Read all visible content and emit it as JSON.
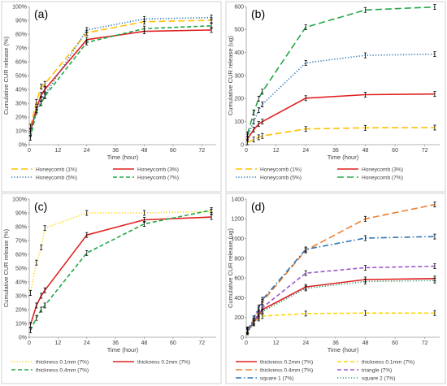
{
  "chart_data": [
    {
      "type": "line",
      "panel_label": "(a)",
      "xlabel": "Time (hour)",
      "ylabel": "Cumulative CUR release (%)",
      "xlim": [
        0,
        78
      ],
      "ylim": [
        0,
        100
      ],
      "xticks": [
        0,
        12,
        24,
        36,
        48,
        60,
        72
      ],
      "yticks": [
        0,
        10,
        20,
        30,
        40,
        50,
        60,
        70,
        80,
        90,
        100
      ],
      "ytick_suffix": "%",
      "legend_placement": "bottom",
      "legend_columns": 2,
      "series": [
        {
          "name": "Honeycomb (1%)",
          "color": "#FFC000",
          "dash": "long-dash",
          "x": [
            0.5,
            3,
            5,
            6.5,
            24,
            48,
            76
          ],
          "y": [
            13,
            31,
            42,
            44,
            81,
            89,
            90
          ]
        },
        {
          "name": "Honeycomb (3%)",
          "color": "#E02020",
          "dash": "solid",
          "x": [
            0.5,
            3,
            5,
            6.5,
            24,
            48,
            76
          ],
          "y": [
            10,
            26,
            36,
            40,
            76,
            82,
            83
          ]
        },
        {
          "name": "Honeycomb (5%)",
          "color": "#2E75B6",
          "dash": "dotted",
          "x": [
            0.5,
            3,
            5,
            6.5,
            24,
            48,
            76
          ],
          "y": [
            8,
            25,
            33,
            36,
            83,
            91,
            92
          ]
        },
        {
          "name": "Honeycomb (7%)",
          "color": "#22A845",
          "dash": "dashed",
          "x": [
            0.5,
            3,
            5,
            6.5,
            24,
            48,
            76
          ],
          "y": [
            5,
            24,
            30,
            35,
            74,
            84,
            86
          ]
        }
      ]
    },
    {
      "type": "line",
      "panel_label": "(b)",
      "xlabel": "Time (hour)",
      "ylabel": "Cumulative CUR release (ug)",
      "xlim": [
        0,
        78
      ],
      "ylim": [
        0,
        600
      ],
      "xticks": [
        0,
        12,
        24,
        36,
        48,
        60,
        72
      ],
      "yticks": [
        0,
        100,
        200,
        300,
        400,
        500,
        600
      ],
      "ytick_suffix": "",
      "legend_placement": "bottom",
      "legend_columns": 2,
      "series": [
        {
          "name": "Honeycomb (1%)",
          "color": "#FFC000",
          "dash": "long-dash",
          "x": [
            0.5,
            3,
            5,
            6.5,
            24,
            48,
            76
          ],
          "y": [
            10,
            22,
            32,
            38,
            68,
            73,
            74
          ]
        },
        {
          "name": "Honeycomb (3%)",
          "color": "#E02020",
          "dash": "solid",
          "x": [
            0.5,
            3,
            5,
            6.5,
            24,
            48,
            76
          ],
          "y": [
            25,
            65,
            90,
            100,
            202,
            217,
            220
          ]
        },
        {
          "name": "Honeycomb (5%)",
          "color": "#2E75B6",
          "dash": "dotted",
          "x": [
            0.5,
            3,
            5,
            6.5,
            24,
            48,
            76
          ],
          "y": [
            35,
            100,
            150,
            175,
            355,
            388,
            393
          ]
        },
        {
          "name": "Honeycomb (7%)",
          "color": "#22A845",
          "dash": "long-dash",
          "x": [
            0.5,
            3,
            5,
            6.5,
            24,
            48,
            76
          ],
          "y": [
            45,
            140,
            200,
            230,
            510,
            585,
            598
          ]
        }
      ]
    },
    {
      "type": "line",
      "panel_label": "(c)",
      "xlabel": "Time (hour)",
      "ylabel": "Cumulative CUR release (%)",
      "xlim": [
        0,
        78
      ],
      "ylim": [
        0,
        100
      ],
      "xticks": [
        0,
        12,
        24,
        36,
        48,
        60,
        72
      ],
      "yticks": [
        0,
        10,
        20,
        30,
        40,
        50,
        60,
        70,
        80,
        90,
        100
      ],
      "ytick_suffix": "%",
      "legend_placement": "bottom",
      "legend_columns": 2,
      "series": [
        {
          "name": "thickness 0.1mm (7%)",
          "color": "#FFD700",
          "dash": "dotted",
          "x": [
            0.5,
            3,
            5,
            6.5,
            24,
            48,
            76
          ],
          "y": [
            32,
            54,
            65,
            79,
            90,
            90,
            91
          ]
        },
        {
          "name": "thickness 0.2mm (7%)",
          "color": "#E02020",
          "dash": "solid",
          "x": [
            0.5,
            3,
            5,
            6.5,
            24,
            48,
            76
          ],
          "y": [
            9,
            23,
            30,
            34,
            74,
            85,
            87
          ]
        },
        {
          "name": "thickness 0.4mm (7%)",
          "color": "#22A845",
          "dash": "dashed",
          "x": [
            0.5,
            3,
            5,
            6.5,
            24,
            48,
            76
          ],
          "y": [
            5,
            14,
            20,
            23,
            61,
            82,
            92
          ]
        }
      ]
    },
    {
      "type": "line",
      "panel_label": "(d)",
      "xlabel": "Time (hour)",
      "ylabel": "Cumulative CUR release (ug)",
      "xlim": [
        0,
        78
      ],
      "ylim": [
        0,
        1400
      ],
      "xticks": [
        0,
        12,
        24,
        36,
        48,
        60,
        72
      ],
      "yticks": [
        0,
        200,
        400,
        600,
        800,
        1000,
        1200,
        1400
      ],
      "ytick_suffix": "",
      "legend_placement": "bottom",
      "legend_columns": 2,
      "series": [
        {
          "name": "thickness 0.2mm (7%)",
          "color": "#E02020",
          "dash": "solid",
          "x": [
            0.5,
            3,
            5,
            6.5,
            24,
            48,
            76
          ],
          "y": [
            60,
            150,
            230,
            280,
            510,
            585,
            595
          ]
        },
        {
          "name": "thickness 0.1mm (7%)",
          "color": "#FFD700",
          "dash": "dashed",
          "x": [
            0.5,
            3,
            5,
            6.5,
            24,
            48,
            76
          ],
          "y": [
            80,
            150,
            190,
            215,
            240,
            245,
            245
          ]
        },
        {
          "name": "thickness 0.4mm (7%)",
          "color": "#ED7D31",
          "dash": "long-dash",
          "x": [
            0.5,
            3,
            5,
            6.5,
            24,
            48,
            76
          ],
          "y": [
            60,
            170,
            280,
            360,
            880,
            1200,
            1345
          ]
        },
        {
          "name": "triangle (7%)",
          "color": "#9B59D0",
          "dash": "dashed",
          "x": [
            0.5,
            3,
            5,
            6.5,
            24,
            48,
            76
          ],
          "y": [
            70,
            160,
            240,
            300,
            650,
            705,
            720
          ]
        },
        {
          "name": "square 1 (7%)",
          "color": "#2E75B6",
          "dash": "dash-dot",
          "x": [
            0.5,
            3,
            5,
            6.5,
            24,
            48,
            76
          ],
          "y": [
            70,
            190,
            300,
            380,
            890,
            1005,
            1020
          ]
        },
        {
          "name": "square 2 (7%)",
          "color": "#2E9E6E",
          "dash": "dotted",
          "x": [
            0.5,
            3,
            5,
            6.5,
            24,
            48,
            76
          ],
          "y": [
            50,
            140,
            210,
            260,
            495,
            565,
            575
          ]
        }
      ]
    }
  ]
}
